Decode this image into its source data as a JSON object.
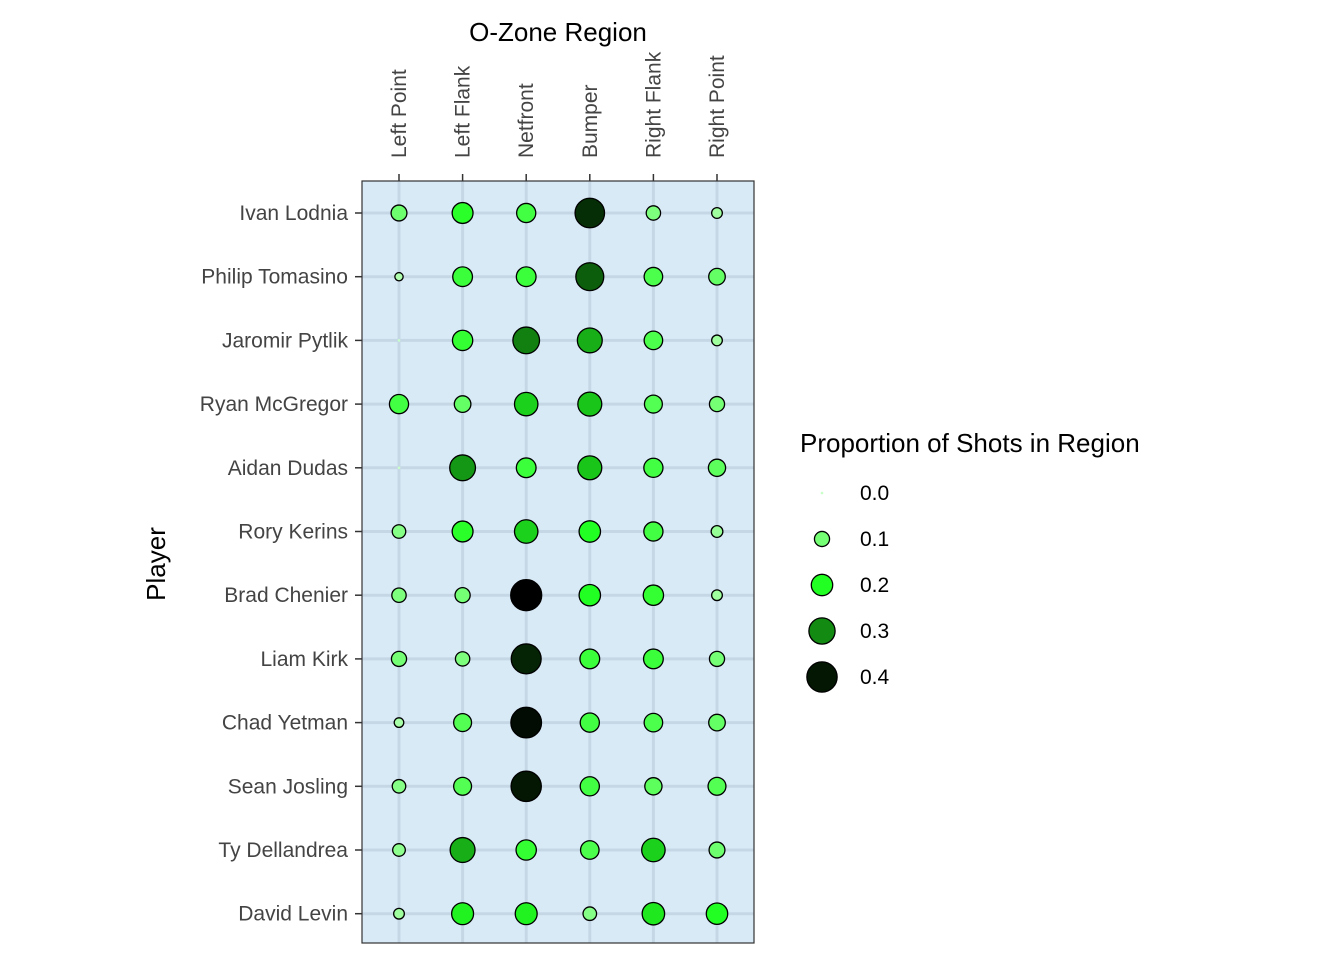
{
  "chart_data": {
    "type": "scatter",
    "subtype": "dot-matrix",
    "xlabel": "O-Zone Region",
    "ylabel": "Player",
    "x_axis_position": "top",
    "categories_x": [
      "Left Point",
      "Left Flank",
      "Netfront",
      "Bumper",
      "Right Flank",
      "Right Point"
    ],
    "categories_y": [
      "Ivan Lodnia",
      "Philip Tomasino",
      "Jaromir Pytlik",
      "Ryan McGregor",
      "Aidan Dudas",
      "Rory Kerins",
      "Brad Chenier",
      "Liam Kirk",
      "Chad Yetman",
      "Sean Josling",
      "Ty Dellandrea",
      "David Levin"
    ],
    "values": [
      [
        0.11,
        0.19,
        0.16,
        0.38,
        0.09,
        0.05
      ],
      [
        0.03,
        0.17,
        0.17,
        0.34,
        0.15,
        0.12
      ],
      [
        0.0,
        0.18,
        0.31,
        0.27,
        0.15,
        0.05
      ],
      [
        0.16,
        0.12,
        0.24,
        0.25,
        0.14,
        0.1
      ],
      [
        0.0,
        0.29,
        0.17,
        0.25,
        0.16,
        0.13
      ],
      [
        0.08,
        0.19,
        0.24,
        0.2,
        0.16,
        0.06
      ],
      [
        0.09,
        0.1,
        0.42,
        0.2,
        0.18,
        0.05
      ],
      [
        0.1,
        0.09,
        0.39,
        0.17,
        0.17,
        0.1
      ],
      [
        0.04,
        0.14,
        0.41,
        0.16,
        0.15,
        0.12
      ],
      [
        0.08,
        0.14,
        0.4,
        0.16,
        0.13,
        0.14
      ],
      [
        0.07,
        0.27,
        0.18,
        0.15,
        0.24,
        0.11
      ],
      [
        0.05,
        0.21,
        0.21,
        0.08,
        0.22,
        0.2
      ]
    ],
    "legend": {
      "title": "Proportion of Shots in Region",
      "placement": "right",
      "breaks": [
        0.0,
        0.1,
        0.2,
        0.3,
        0.4
      ],
      "labels": [
        "0.0",
        "0.1",
        "0.2",
        "0.3",
        "0.4"
      ]
    },
    "size_range": [
      0,
      0.42
    ],
    "colors": {
      "panel_bg": "#d9eaf7",
      "grid": "#c5d7e5",
      "panel_border": "#333333",
      "low": "#c8ffc8",
      "mid": "#22ff22",
      "high": "#000000"
    },
    "grid": true
  }
}
